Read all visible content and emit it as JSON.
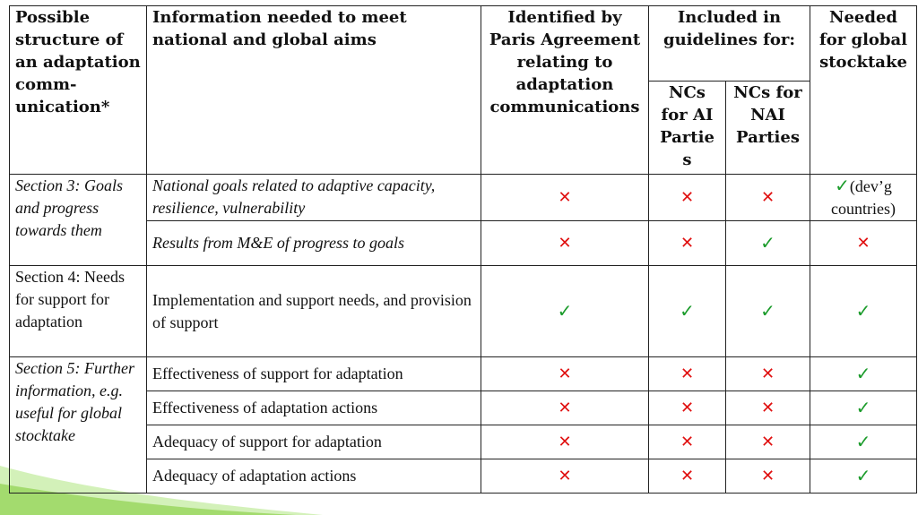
{
  "header": {
    "col1": "Possible structure of an adaptation comm-unication*",
    "col2": "Information needed to meet national and global aims",
    "col3": "Identified by Paris Agreement relating to adaptation communications",
    "col45": "Included in guidelines for:",
    "col4": "NCs for AI Partie s",
    "col5": "NCs for NAI Parties",
    "col6": "Needed for global stocktake"
  },
  "sections": {
    "s3": "Section 3: Goals and progress towards them",
    "s4": "Section 4: Needs for support for adaptation",
    "s5": "Section 5: Further information, e.g. useful for global stocktake"
  },
  "rows": [
    {
      "info": "National goals related to adaptive capacity, resilience, vulnerability",
      "m1": "✕",
      "m2": "✕",
      "m3": "✕",
      "m4": "✓",
      "m4_note": "(dev’g countries)"
    },
    {
      "info": "Results from M&E of progress to goals",
      "m1": "✕",
      "m2": "✕",
      "m3": "✓",
      "m4": "✕"
    },
    {
      "info": "Implementation and support needs, and provision of support",
      "m1": "✓",
      "m2": "✓",
      "m3": "✓",
      "m4": "✓"
    },
    {
      "info": "Effectiveness of support for adaptation",
      "m1": "✕",
      "m2": "✕",
      "m3": "✕",
      "m4": "✓"
    },
    {
      "info": "Effectiveness of adaptation actions",
      "m1": "✕",
      "m2": "✕",
      "m3": "✕",
      "m4": "✓"
    },
    {
      "info": "Adequacy of support for adaptation",
      "m1": "✕",
      "m2": "✕",
      "m3": "✕",
      "m4": "✓"
    },
    {
      "info": "Adequacy of adaptation actions",
      "m1": "✕",
      "m2": "✕",
      "m3": "✕",
      "m4": "✓"
    }
  ],
  "colors": {
    "cross": "#e01010",
    "check": "#1a9b2a",
    "swoosh": "#8fd14f"
  }
}
